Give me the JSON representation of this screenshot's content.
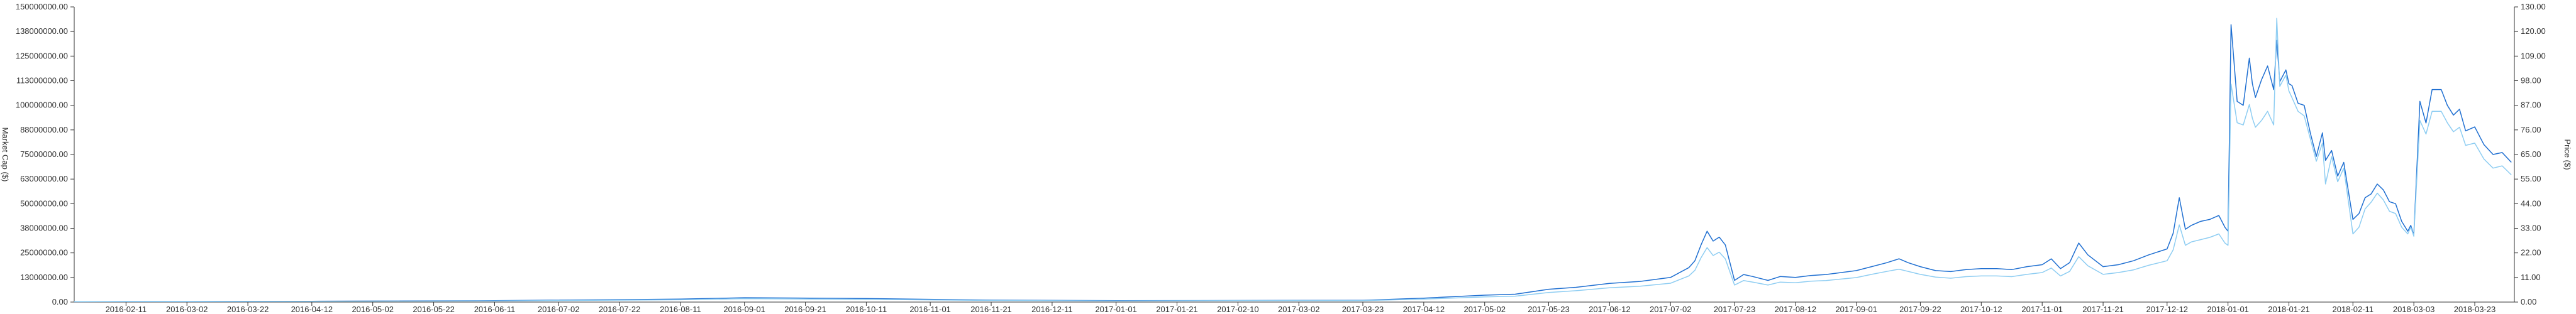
{
  "chart_data": {
    "type": "line",
    "title": "",
    "ylabel_left": "Market Cap ($)",
    "ylabel_right": "Price ($)",
    "ylim_left": [
      0,
      150000000
    ],
    "ylim_right": [
      0,
      130
    ],
    "grid": false,
    "legend": "none",
    "left_ticks": [
      "0.00",
      "13000000.00",
      "25000000.00",
      "38000000.00",
      "50000000.00",
      "63000000.00",
      "75000000.00",
      "88000000.00",
      "100000000.00",
      "113000000.00",
      "125000000.00",
      "138000000.00",
      "150000000.00"
    ],
    "right_ticks": [
      "0.00",
      "11.00",
      "22.00",
      "33.00",
      "44.00",
      "55.00",
      "65.00",
      "76.00",
      "87.00",
      "98.00",
      "109.00",
      "120.00",
      "130.00"
    ],
    "x_ticks": [
      "2016-02-11",
      "2016-03-02",
      "2016-03-22",
      "2016-04-12",
      "2016-05-02",
      "2016-05-22",
      "2016-06-11",
      "2016-07-02",
      "2016-07-22",
      "2016-08-11",
      "2016-09-01",
      "2016-09-21",
      "2016-10-11",
      "2016-11-01",
      "2016-11-21",
      "2016-12-11",
      "2017-01-01",
      "2017-01-21",
      "2017-02-10",
      "2017-03-02",
      "2017-03-23",
      "2017-04-12",
      "2017-05-02",
      "2017-05-23",
      "2017-06-12",
      "2017-07-02",
      "2017-07-23",
      "2017-08-12",
      "2017-09-01",
      "2017-09-22",
      "2017-10-12",
      "2017-11-01",
      "2017-11-21",
      "2017-12-12",
      "2018-01-01",
      "2018-01-21",
      "2018-02-11",
      "2018-03-03",
      "2018-03-23"
    ],
    "x_range": [
      "2016-01-25",
      "2018-04-05"
    ],
    "series": [
      {
        "axis": "left",
        "color": "#1f6fd1",
        "x": [
          "2016-01-25",
          "2016-02-11",
          "2016-03-02",
          "2016-04-12",
          "2016-06-11",
          "2016-08-11",
          "2016-09-01",
          "2016-10-11",
          "2016-11-21",
          "2017-01-01",
          "2017-02-10",
          "2017-03-23",
          "2017-04-12",
          "2017-05-02",
          "2017-05-12",
          "2017-05-23",
          "2017-06-01",
          "2017-06-12",
          "2017-06-22",
          "2017-07-02",
          "2017-07-08",
          "2017-07-10",
          "2017-07-12",
          "2017-07-14",
          "2017-07-16",
          "2017-07-18",
          "2017-07-20",
          "2017-07-23",
          "2017-07-26",
          "2017-07-29",
          "2017-08-03",
          "2017-08-07",
          "2017-08-12",
          "2017-08-17",
          "2017-08-22",
          "2017-09-01",
          "2017-09-06",
          "2017-09-11",
          "2017-09-15",
          "2017-09-18",
          "2017-09-22",
          "2017-09-27",
          "2017-10-02",
          "2017-10-07",
          "2017-10-12",
          "2017-10-17",
          "2017-10-22",
          "2017-10-27",
          "2017-11-01",
          "2017-11-04",
          "2017-11-07",
          "2017-11-10",
          "2017-11-13",
          "2017-11-16",
          "2017-11-21",
          "2017-11-26",
          "2017-12-01",
          "2017-12-06",
          "2017-12-12",
          "2017-12-14",
          "2017-12-16",
          "2017-12-18",
          "2017-12-20",
          "2017-12-23",
          "2017-12-26",
          "2017-12-29",
          "2017-12-31",
          "2018-01-01",
          "2018-01-02",
          "2018-01-04",
          "2018-01-06",
          "2018-01-08",
          "2018-01-09",
          "2018-01-10",
          "2018-01-12",
          "2018-01-14",
          "2018-01-16",
          "2018-01-17",
          "2018-01-18",
          "2018-01-20",
          "2018-01-21",
          "2018-01-22",
          "2018-01-24",
          "2018-01-26",
          "2018-01-28",
          "2018-01-30",
          "2018-02-01",
          "2018-02-02",
          "2018-02-04",
          "2018-02-06",
          "2018-02-08",
          "2018-02-11",
          "2018-02-13",
          "2018-02-15",
          "2018-02-17",
          "2018-02-19",
          "2018-02-21",
          "2018-02-23",
          "2018-02-25",
          "2018-02-27",
          "2018-03-01",
          "2018-03-02",
          "2018-03-03",
          "2018-03-05",
          "2018-03-07",
          "2018-03-09",
          "2018-03-12",
          "2018-03-14",
          "2018-03-16",
          "2018-03-18",
          "2018-03-20",
          "2018-03-23",
          "2018-03-26",
          "2018-03-29",
          "2018-04-01",
          "2018-04-04"
        ],
        "values": [
          200000,
          300000,
          300000,
          400000,
          700000,
          1500000,
          2200000,
          1800000,
          1000000,
          700000,
          800000,
          900000,
          2000000,
          3500000,
          4000000,
          6500000,
          7500000,
          9500000,
          10500000,
          12500000,
          17500000,
          21000000,
          29000000,
          36000000,
          31000000,
          33000000,
          29000000,
          11000000,
          14000000,
          13000000,
          11000000,
          13000000,
          12500000,
          13500000,
          14000000,
          16000000,
          18000000,
          20000000,
          22000000,
          20000000,
          18000000,
          16000000,
          15500000,
          16500000,
          17000000,
          17000000,
          16500000,
          18000000,
          19000000,
          22000000,
          17000000,
          20000000,
          30000000,
          24000000,
          18000000,
          19000000,
          21000000,
          24000000,
          27000000,
          35000000,
          53000000,
          37000000,
          39000000,
          41000000,
          42000000,
          44000000,
          38000000,
          36000000,
          141000000,
          102000000,
          100000000,
          124000000,
          111000000,
          104000000,
          113000000,
          120000000,
          108000000,
          133000000,
          112000000,
          118000000,
          111000000,
          110000000,
          101000000,
          100000000,
          86000000,
          74000000,
          86000000,
          72000000,
          77000000,
          64000000,
          71000000,
          42000000,
          45000000,
          53000000,
          55000000,
          60000000,
          57000000,
          51000000,
          50000000,
          41000000,
          36000000,
          39000000,
          34000000,
          102000000,
          91000000,
          108000000,
          108000000,
          100000000,
          95000000,
          98000000,
          87000000,
          89000000,
          80000000,
          75000000,
          76000000,
          71000000
        ]
      },
      {
        "axis": "right",
        "color": "#8ecdf2",
        "x": [
          "2016-01-25",
          "2016-02-11",
          "2016-03-02",
          "2016-04-12",
          "2016-06-11",
          "2016-08-11",
          "2016-09-01",
          "2016-10-11",
          "2016-11-21",
          "2017-01-01",
          "2017-02-10",
          "2017-03-23",
          "2017-04-12",
          "2017-05-02",
          "2017-05-12",
          "2017-05-23",
          "2017-06-01",
          "2017-06-12",
          "2017-06-22",
          "2017-07-02",
          "2017-07-08",
          "2017-07-10",
          "2017-07-12",
          "2017-07-14",
          "2017-07-16",
          "2017-07-18",
          "2017-07-20",
          "2017-07-23",
          "2017-07-26",
          "2017-07-29",
          "2017-08-03",
          "2017-08-07",
          "2017-08-12",
          "2017-08-17",
          "2017-08-22",
          "2017-09-01",
          "2017-09-06",
          "2017-09-11",
          "2017-09-15",
          "2017-09-18",
          "2017-09-22",
          "2017-09-27",
          "2017-10-02",
          "2017-10-07",
          "2017-10-12",
          "2017-10-17",
          "2017-10-22",
          "2017-10-27",
          "2017-11-01",
          "2017-11-04",
          "2017-11-07",
          "2017-11-10",
          "2017-11-13",
          "2017-11-16",
          "2017-11-21",
          "2017-11-26",
          "2017-12-01",
          "2017-12-06",
          "2017-12-12",
          "2017-12-14",
          "2017-12-16",
          "2017-12-18",
          "2017-12-20",
          "2017-12-23",
          "2017-12-26",
          "2017-12-29",
          "2017-12-31",
          "2018-01-01",
          "2018-01-02",
          "2018-01-04",
          "2018-01-06",
          "2018-01-08",
          "2018-01-09",
          "2018-01-10",
          "2018-01-12",
          "2018-01-14",
          "2018-01-16",
          "2018-01-17",
          "2018-01-18",
          "2018-01-20",
          "2018-01-21",
          "2018-01-22",
          "2018-01-24",
          "2018-01-26",
          "2018-01-28",
          "2018-01-30",
          "2018-02-01",
          "2018-02-02",
          "2018-02-04",
          "2018-02-06",
          "2018-02-08",
          "2018-02-11",
          "2018-02-13",
          "2018-02-15",
          "2018-02-17",
          "2018-02-19",
          "2018-02-21",
          "2018-02-23",
          "2018-02-25",
          "2018-02-27",
          "2018-03-01",
          "2018-03-02",
          "2018-03-03",
          "2018-03-05",
          "2018-03-07",
          "2018-03-09",
          "2018-03-12",
          "2018-03-14",
          "2018-03-16",
          "2018-03-18",
          "2018-03-20",
          "2018-03-23",
          "2018-03-26",
          "2018-03-29",
          "2018-04-01",
          "2018-04-04"
        ],
        "values": [
          0.2,
          0.25,
          0.25,
          0.3,
          0.5,
          1.0,
          1.5,
          1.2,
          0.7,
          0.5,
          0.6,
          0.6,
          1.3,
          2.3,
          2.6,
          4.2,
          5.0,
          6.3,
          7.0,
          8.3,
          11.5,
          14.0,
          19.5,
          24.0,
          20.5,
          22.0,
          19.0,
          7.5,
          9.5,
          8.8,
          7.5,
          8.8,
          8.5,
          9.2,
          9.5,
          10.8,
          12.2,
          13.5,
          14.5,
          13.5,
          12.2,
          11.0,
          10.5,
          11.2,
          11.5,
          11.5,
          11.2,
          12.2,
          13.0,
          15.0,
          11.5,
          13.5,
          20.0,
          16.0,
          12.2,
          13.0,
          14.2,
          16.2,
          18.2,
          23.0,
          34.0,
          25.0,
          26.5,
          27.5,
          28.5,
          30.0,
          26.0,
          25.0,
          96.0,
          79.0,
          78.0,
          87.0,
          81.0,
          77.0,
          80.0,
          84.0,
          78.0,
          125.0,
          95.0,
          100.0,
          93.0,
          90.0,
          84.0,
          82.0,
          72.0,
          62.0,
          70.0,
          52.0,
          64.0,
          53.0,
          59.0,
          30.0,
          33.0,
          41.0,
          44.0,
          48.0,
          45.0,
          40.0,
          39.0,
          33.0,
          30.0,
          33.0,
          29.0,
          80.0,
          74.0,
          84.0,
          84.0,
          79.0,
          75.0,
          77.0,
          69.0,
          70.0,
          63.0,
          59.0,
          60.0,
          56.0
        ]
      }
    ]
  }
}
